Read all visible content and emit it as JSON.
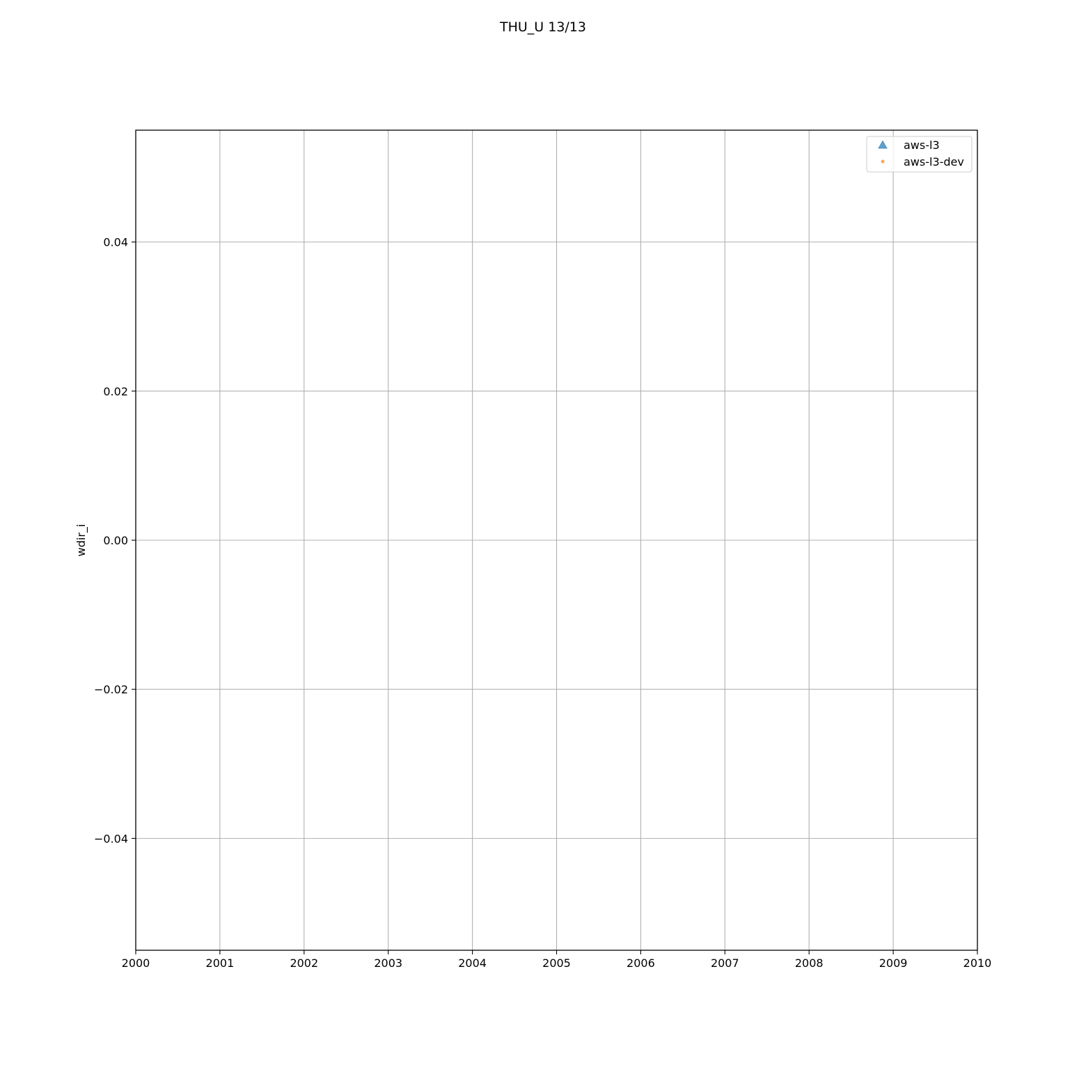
{
  "chart_data": {
    "type": "scatter",
    "title": "THU_U 13/13",
    "xlabel": "",
    "ylabel": "wdir_i",
    "xlim": [
      2000,
      2010
    ],
    "ylim": [
      -0.055,
      0.055
    ],
    "x_ticks": [
      "2000",
      "2001",
      "2002",
      "2003",
      "2004",
      "2005",
      "2006",
      "2007",
      "2008",
      "2009",
      "2010"
    ],
    "y_ticks": [
      {
        "value": 0.04,
        "label": "0.04"
      },
      {
        "value": 0.02,
        "label": "0.02"
      },
      {
        "value": 0.0,
        "label": "0.00"
      },
      {
        "value": -0.02,
        "label": "−0.02"
      },
      {
        "value": -0.04,
        "label": "−0.04"
      }
    ],
    "grid": true,
    "legend_position": "top-right",
    "series": [
      {
        "name": "aws-l3",
        "marker": "triangle-up",
        "color": "#1f77b4",
        "x": [],
        "y": []
      },
      {
        "name": "aws-l3-dev",
        "marker": "circle",
        "color": "#ff7f0e",
        "x": [],
        "y": []
      }
    ]
  }
}
